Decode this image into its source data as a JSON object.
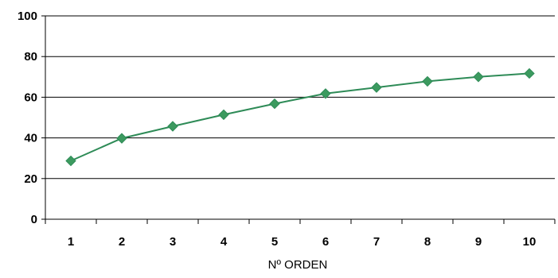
{
  "chart_data": {
    "type": "line",
    "title": "",
    "xlabel": "Nº ORDEN",
    "ylabel": "",
    "categories": [
      "1",
      "2",
      "3",
      "4",
      "5",
      "6",
      "7",
      "8",
      "9",
      "10"
    ],
    "series": [
      {
        "values": [
          28.7,
          39.8,
          45.7,
          51.4,
          56.8,
          61.8,
          64.8,
          67.8,
          70.0,
          71.7
        ]
      }
    ],
    "ylim": [
      0,
      100
    ],
    "yticks": [
      "0",
      "20",
      "40",
      "60",
      "80",
      "100"
    ],
    "grid": "horizontal",
    "legend": "none",
    "marker": "diamond",
    "colors": {
      "series": "#2e8b57",
      "marker_fill": "#3c9a5f",
      "grid": "#000000",
      "axis": "#000000"
    }
  }
}
